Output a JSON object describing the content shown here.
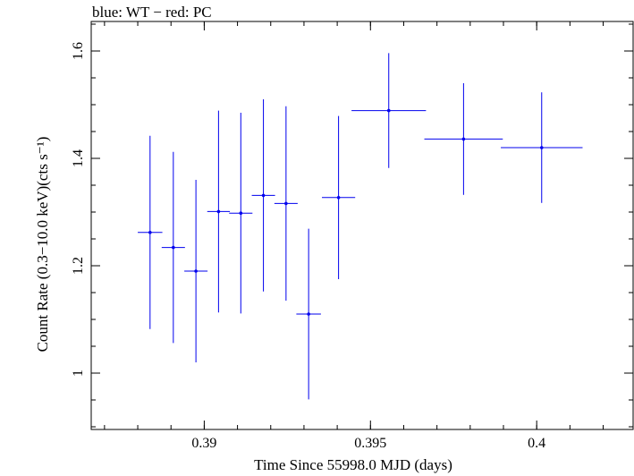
{
  "chart_data": {
    "type": "scatter",
    "title": "blue: WT − red: PC",
    "xlabel": "Time Since 55998.0 MJD (days)",
    "ylabel": "Count Rate (0.3−10.0 keV)(cts s⁻¹)",
    "xlim": [
      0.3866,
      0.4029
    ],
    "ylim": [
      0.895,
      1.655
    ],
    "x_ticks": [
      {
        "value": 0.39,
        "label": "0.39"
      },
      {
        "value": 0.395,
        "label": "0.395"
      },
      {
        "value": 0.4,
        "label": "0.4"
      }
    ],
    "y_ticks": [
      {
        "value": 1.0,
        "label": "1"
      },
      {
        "value": 1.2,
        "label": "1.2"
      },
      {
        "value": 1.4,
        "label": "1.4"
      },
      {
        "value": 1.6,
        "label": "1.6"
      }
    ],
    "x_minor_step": 0.001,
    "y_minor_step": 0.05,
    "grid": false,
    "series": [
      {
        "color": "#0000ee",
        "points": [
          {
            "x": 0.38837,
            "xerr": 0.00037,
            "y": 1.262,
            "yerr": 0.18
          },
          {
            "x": 0.38907,
            "xerr": 0.00035,
            "y": 1.234,
            "yerr": 0.178
          },
          {
            "x": 0.38975,
            "xerr": 0.00035,
            "y": 1.19,
            "yerr": 0.17
          },
          {
            "x": 0.39043,
            "xerr": 0.00034,
            "y": 1.301,
            "yerr": 0.188
          },
          {
            "x": 0.3911,
            "xerr": 0.00035,
            "y": 1.298,
            "yerr": 0.187
          },
          {
            "x": 0.39178,
            "xerr": 0.00035,
            "y": 1.331,
            "yerr": 0.179
          },
          {
            "x": 0.39246,
            "xerr": 0.00035,
            "y": 1.316,
            "yerr": 0.181
          },
          {
            "x": 0.39314,
            "xerr": 0.00037,
            "y": 1.11,
            "yerr": 0.159
          },
          {
            "x": 0.39404,
            "xerr": 0.0005,
            "y": 1.327,
            "yerr": 0.152
          },
          {
            "x": 0.39555,
            "xerr": 0.00112,
            "y": 1.489,
            "yerr": 0.107
          },
          {
            "x": 0.3978,
            "xerr": 0.00118,
            "y": 1.436,
            "yerr": 0.104
          },
          {
            "x": 0.40015,
            "xerr": 0.00123,
            "y": 1.42,
            "yerr": 0.103
          }
        ]
      }
    ]
  }
}
